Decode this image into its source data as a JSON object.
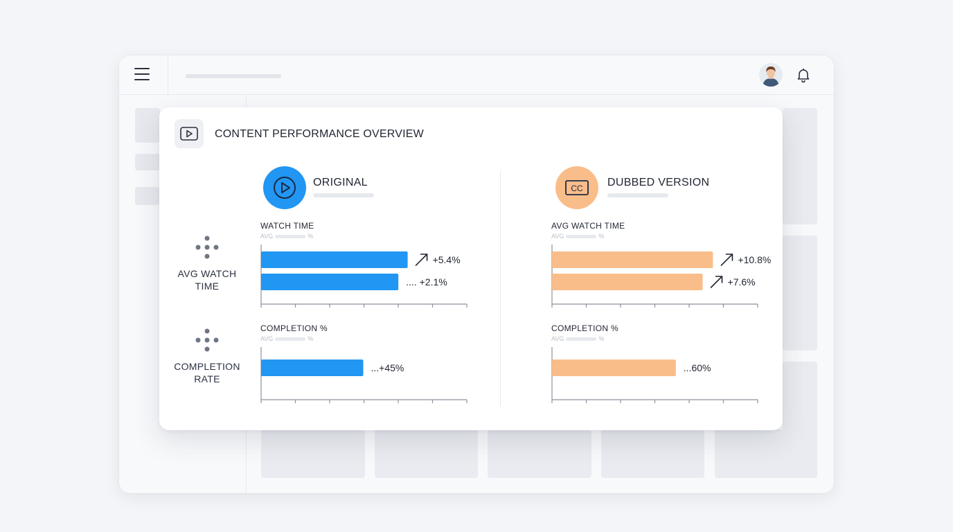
{
  "app": {
    "header": {
      "menu_icon": "hamburger-menu-icon",
      "avatar_icon": "user-avatar-icon",
      "notification_icon": "bell-icon"
    }
  },
  "card": {
    "title": "CONTENT PERFORMANCE OVERVIEW",
    "icon": "video-play-icon",
    "row_labels": [
      {
        "line1": "AVG WATCH",
        "line2": "TIME"
      },
      {
        "line1": "COMPLETION",
        "line2": "RATE"
      }
    ],
    "columns": [
      {
        "title": "ORIGINAL",
        "icon": "play-circle-icon",
        "color": "#2196f3",
        "panels": [
          {
            "title": "WATCH TIME",
            "sub_left": "AVG",
            "sub_right": "%",
            "bars": [
              {
                "value_label": "+5.4%",
                "prefix": "↗",
                "fill": 0.71
              },
              {
                "value_label": "+2.1%",
                "prefix": "....",
                "fill": 0.665
              }
            ]
          },
          {
            "title": "COMPLETION %",
            "sub_left": "AVG",
            "sub_right": "%",
            "bars": [
              {
                "value_label": "+45%",
                "prefix": "...",
                "fill": 0.495
              }
            ]
          }
        ]
      },
      {
        "title": "DUBBED VERSION",
        "icon": "closed-captions-icon",
        "color": "#f9bd8a",
        "panels": [
          {
            "title": "AVG WATCH TIME",
            "sub_left": "AVG",
            "sub_right": "%",
            "bars": [
              {
                "value_label": "+10.8%",
                "prefix": "↗",
                "fill": 0.78
              },
              {
                "value_label": "+7.6%",
                "prefix": "↗",
                "fill": 0.73
              }
            ]
          },
          {
            "title": "COMPLETION %",
            "sub_left": "AVG",
            "sub_right": "%",
            "bars": [
              {
                "value_label": "60%",
                "prefix": "...",
                "fill": 0.6
              }
            ]
          }
        ]
      }
    ]
  }
}
